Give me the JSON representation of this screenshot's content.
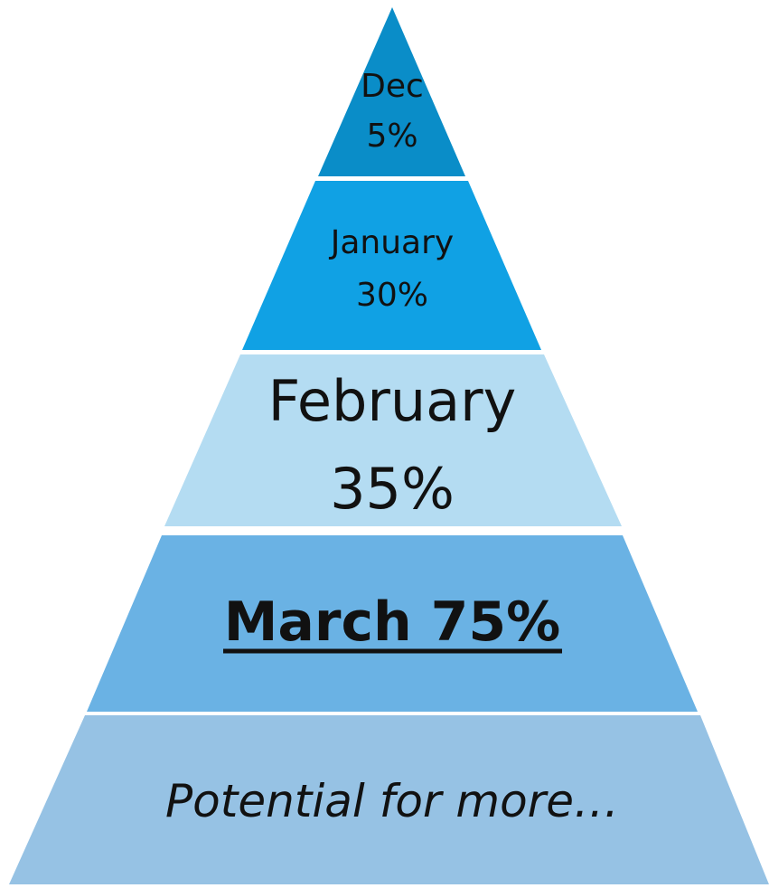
{
  "pyramid": {
    "tiers": [
      {
        "name": "Dec",
        "value": "5%",
        "color": "#0a8dc8"
      },
      {
        "name": "January",
        "value": "30%",
        "color": "#10a1e4"
      },
      {
        "name": "February",
        "value": "35%",
        "color": "#b4dcf2"
      },
      {
        "name": "March 75%",
        "color": "#6ab2e4",
        "emphasis": "bold-underline"
      },
      {
        "name": "Potential for more…",
        "color": "#96c2e4",
        "emphasis": "italic"
      }
    ],
    "separator_color": "#ffffff"
  }
}
